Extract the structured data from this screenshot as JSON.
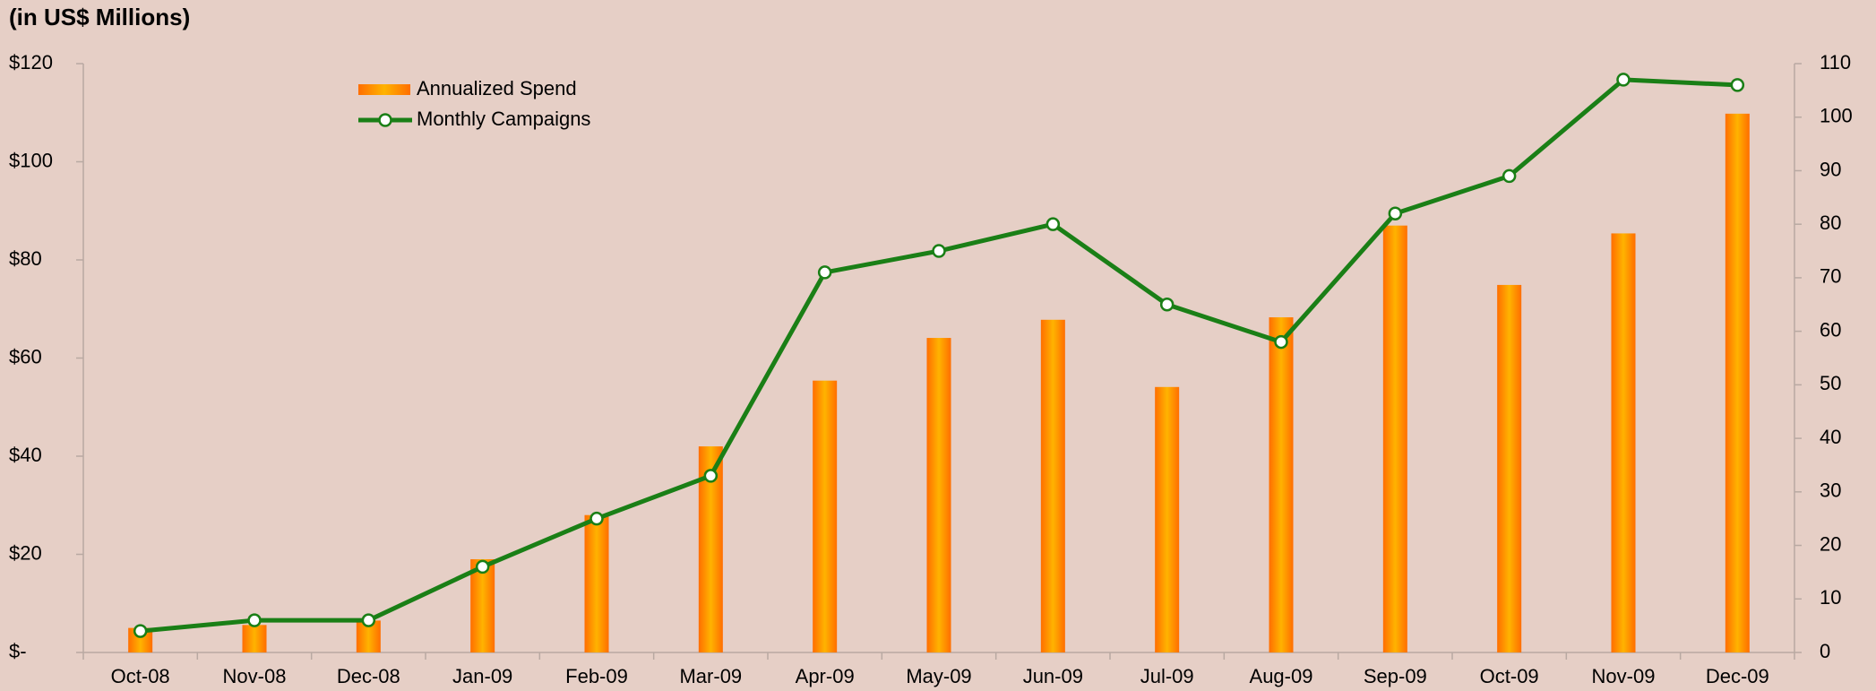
{
  "chart_data": {
    "type": "bar_line",
    "title": "(in US$ Millions)",
    "categories": [
      "Oct-08",
      "Nov-08",
      "Dec-08",
      "Jan-09",
      "Feb-09",
      "Mar-09",
      "Apr-09",
      "May-09",
      "Jun-09",
      "Jul-09",
      "Aug-09",
      "Sep-09",
      "Oct-09",
      "Nov-09",
      "Dec-09"
    ],
    "series": [
      {
        "name": "Annualized Spend",
        "type": "bar",
        "color": "#ffb300",
        "values": [
          5,
          5.6,
          6.5,
          19,
          28,
          42,
          55.4,
          64.1,
          67.8,
          54.1,
          68.3,
          87,
          74.9,
          85.4,
          109.8
        ]
      },
      {
        "name": "Monthly Campaigns",
        "type": "line",
        "axis": "y2",
        "color": "#1a7f16",
        "values": [
          4,
          6,
          6,
          16,
          25,
          33,
          71,
          75,
          80,
          65,
          58,
          82,
          89,
          107,
          106
        ]
      }
    ],
    "ylim": [
      0,
      120
    ],
    "yticks": [
      {
        "value": 0,
        "label": "$-"
      },
      {
        "value": 20,
        "label": "$20"
      },
      {
        "value": 40,
        "label": "$40"
      },
      {
        "value": 60,
        "label": "$60"
      },
      {
        "value": 80,
        "label": "$80"
      },
      {
        "value": 100,
        "label": "$100"
      },
      {
        "value": 120,
        "label": "$120"
      }
    ],
    "y2lim": [
      0,
      110
    ],
    "y2ticks": [
      0,
      10,
      20,
      30,
      40,
      50,
      60,
      70,
      80,
      90,
      100,
      110
    ],
    "legend": "upper left"
  }
}
